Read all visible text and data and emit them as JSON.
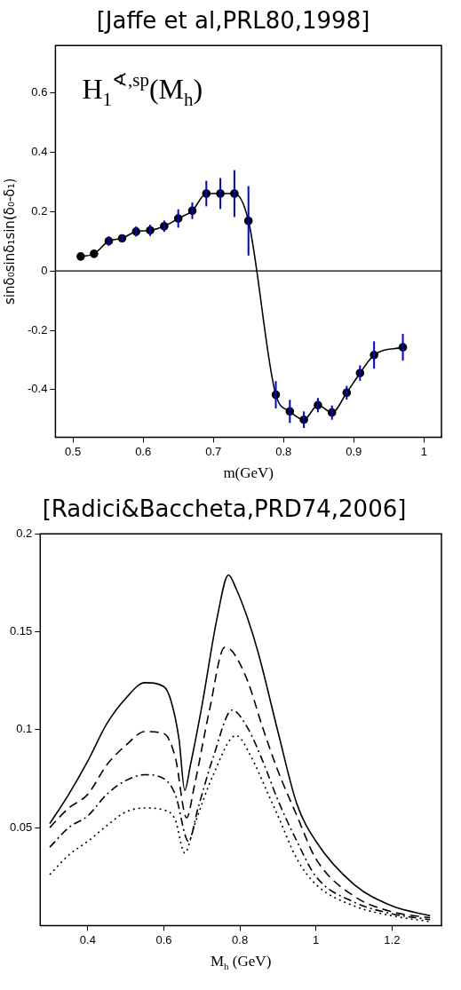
{
  "chart_data": [
    {
      "type": "line",
      "title": "[Jaffe et al,PRL80,1998]",
      "xlabel": "m(GeV)",
      "ylabel": "sinδ₀sinδ₁sin(δ₀-δ₁)",
      "annotations": [
        "H$_{1}$$^{∢,sp}$(M$_{h}$)"
      ],
      "xlim": [
        0.475,
        1.025
      ],
      "xticks": [
        0.5,
        0.6,
        0.7,
        0.8,
        0.9,
        1
      ],
      "ylim": [
        -0.56,
        0.76
      ],
      "yticks": [
        -0.4,
        -0.2,
        0,
        0.2,
        0.4,
        0.6
      ],
      "grid": false,
      "legend": false,
      "marker": "circle",
      "ref_lines": [
        {
          "axis": "y",
          "value": 0,
          "color": "#000000"
        }
      ],
      "series": [
        {
          "color": "#000000",
          "line_style": "solid",
          "x": [
            0.511,
            0.53,
            0.551,
            0.57,
            0.59,
            0.61,
            0.63,
            0.65,
            0.67,
            0.69,
            0.71,
            0.73,
            0.75,
            0.789,
            0.809,
            0.829,
            0.849,
            0.869,
            0.89,
            0.909,
            0.929,
            0.97
          ],
          "values": [
            0.049,
            0.058,
            0.101,
            0.11,
            0.133,
            0.137,
            0.151,
            0.177,
            0.203,
            0.261,
            0.261,
            0.261,
            0.169,
            -0.417,
            -0.473,
            -0.501,
            -0.452,
            -0.477,
            -0.41,
            -0.344,
            -0.283,
            -0.257
          ],
          "errors": [
            null,
            null,
            0.016,
            0.012,
            0.017,
            0.019,
            0.019,
            0.031,
            0.028,
            0.043,
            0.052,
            0.079,
            0.117,
            0.046,
            0.039,
            0.028,
            0.024,
            0.024,
            0.023,
            0.026,
            0.046,
            0.045
          ]
        }
      ]
    },
    {
      "type": "line",
      "title": "[Radici&Baccheta,PRD74,2006]",
      "xlabel": "M$_{h}$ (GeV)",
      "xlim": [
        0.275,
        1.33
      ],
      "xticks": [
        0.4,
        0.6,
        0.8,
        1,
        1.2
      ],
      "ylim": [
        0,
        0.2
      ],
      "yticks": [
        0.05,
        0.1,
        0.15,
        0.2
      ],
      "grid": false,
      "legend": false,
      "marker": "none",
      "series": [
        {
          "color": "#000000",
          "line_style": "solid",
          "x": [
            0.3,
            0.35,
            0.4,
            0.45,
            0.5,
            0.55,
            0.6,
            0.62,
            0.64,
            0.655,
            0.67,
            0.7,
            0.74,
            0.77,
            0.79,
            0.82,
            0.85,
            0.9,
            0.95,
            1.0,
            1.1,
            1.2,
            1.3
          ],
          "values": [
            0.052,
            0.067,
            0.084,
            0.103,
            0.116,
            0.124,
            0.122,
            0.114,
            0.095,
            0.069,
            0.082,
            0.112,
            0.157,
            0.179,
            0.172,
            0.157,
            0.138,
            0.099,
            0.062,
            0.043,
            0.021,
            0.01,
            0.005
          ]
        },
        {
          "color": "#000000",
          "line_style": "dashed",
          "x": [
            0.3,
            0.35,
            0.4,
            0.45,
            0.5,
            0.55,
            0.6,
            0.63,
            0.66,
            0.68,
            0.72,
            0.76,
            0.78,
            0.82,
            0.86,
            0.9,
            0.95,
            1.0,
            1.1,
            1.2,
            1.3
          ],
          "values": [
            0.05,
            0.06,
            0.067,
            0.082,
            0.092,
            0.099,
            0.098,
            0.086,
            0.055,
            0.071,
            0.11,
            0.142,
            0.14,
            0.125,
            0.101,
            0.079,
            0.056,
            0.034,
            0.015,
            0.007,
            0.004
          ]
        },
        {
          "color": "#000000",
          "line_style": "dashdot",
          "x": [
            0.3,
            0.35,
            0.4,
            0.45,
            0.5,
            0.55,
            0.6,
            0.63,
            0.665,
            0.69,
            0.73,
            0.78,
            0.82,
            0.86,
            0.9,
            0.95,
            1.0,
            1.1,
            1.2,
            1.3
          ],
          "values": [
            0.04,
            0.05,
            0.056,
            0.067,
            0.074,
            0.077,
            0.075,
            0.067,
            0.043,
            0.06,
            0.086,
            0.11,
            0.101,
            0.084,
            0.064,
            0.043,
            0.025,
            0.012,
            0.006,
            0.003
          ]
        },
        {
          "color": "#000000",
          "line_style": "dotted",
          "x": [
            0.3,
            0.35,
            0.4,
            0.45,
            0.5,
            0.55,
            0.6,
            0.63,
            0.655,
            0.68,
            0.73,
            0.79,
            0.83,
            0.87,
            0.9,
            0.95,
            1.0,
            1.1,
            1.2,
            1.3
          ],
          "values": [
            0.026,
            0.036,
            0.043,
            0.051,
            0.058,
            0.06,
            0.059,
            0.054,
            0.037,
            0.051,
            0.077,
            0.097,
            0.086,
            0.069,
            0.056,
            0.034,
            0.021,
            0.01,
            0.005,
            0.002
          ]
        }
      ]
    }
  ]
}
